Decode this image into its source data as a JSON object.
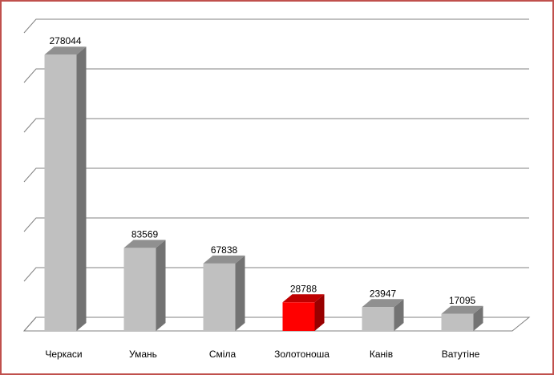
{
  "chart_data": {
    "type": "bar3d",
    "categories": [
      "Черкаси",
      "Умань",
      "Сміла",
      "Золотоноша",
      "Канів",
      "Ватутіне"
    ],
    "values": [
      278044,
      83569,
      67838,
      28788,
      23947,
      17095
    ],
    "colors": [
      "#c0c0c0",
      "#c0c0c0",
      "#c0c0c0",
      "#ff0000",
      "#c0c0c0",
      "#c0c0c0"
    ],
    "ylim": [
      0,
      300000
    ],
    "yticks": [
      0,
      50000,
      100000,
      150000,
      200000,
      250000,
      300000
    ],
    "grid": true
  }
}
